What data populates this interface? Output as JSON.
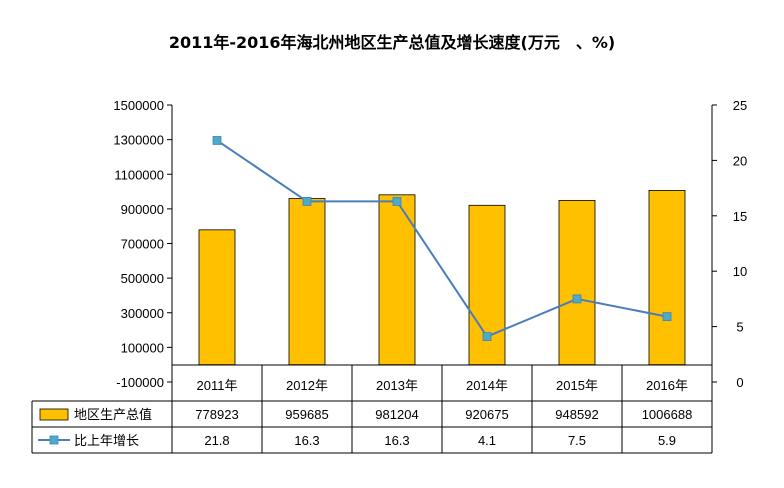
{
  "chart_data": {
    "type": "bar",
    "title": "2011年-2016年海北州地区生产总值及增长速度(万元　、%)",
    "categories": [
      "2011年",
      "2012年",
      "2013年",
      "2014年",
      "2015年",
      "2016年"
    ],
    "series": [
      {
        "name": "地区生产总值",
        "type": "bar",
        "axis": "left",
        "values": [
          778923,
          959685,
          981204,
          920675,
          948592,
          1006688
        ],
        "labels": [
          "778923",
          "959685",
          "981204",
          "920675",
          "948592",
          "1006688"
        ]
      },
      {
        "name": "比上年增长",
        "type": "line",
        "axis": "right",
        "values": [
          21.8,
          16.3,
          16.3,
          4.1,
          7.5,
          5.9
        ],
        "labels": [
          "21.8",
          "16.3",
          "16.3",
          "4.1",
          "7.5",
          "5.9"
        ]
      }
    ],
    "y_left": {
      "ylim": [
        -100000,
        1500000
      ],
      "ticks": [
        "1500000",
        "1300000",
        "1100000",
        "900000",
        "700000",
        "500000",
        "300000",
        "100000",
        "-100000"
      ],
      "tick_values": [
        1500000,
        1300000,
        1100000,
        900000,
        700000,
        500000,
        300000,
        100000,
        -100000
      ]
    },
    "y_right": {
      "ylim": [
        0,
        25
      ],
      "ticks": [
        "25",
        "20",
        "15",
        "10",
        "5",
        "0"
      ],
      "tick_values": [
        25,
        20,
        15,
        10,
        5,
        0
      ]
    },
    "grid": false,
    "legend": "data-table"
  },
  "colors": {
    "bar_fill": "#FFC000",
    "bar_stroke": "#000000",
    "line": "#4A7EBB",
    "marker": "#4BACC6",
    "axis": "#000000"
  }
}
